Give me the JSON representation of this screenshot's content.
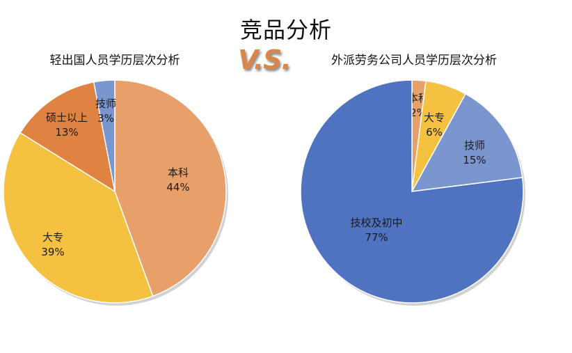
{
  "main_title": "竞品分析",
  "vs_text": "V.S.",
  "chart_data": [
    {
      "type": "pie",
      "title": "轻出国人员学历层次分析",
      "slices": [
        {
          "label": "本科",
          "value": 44,
          "value_text": "44%",
          "color": "#e8a06b"
        },
        {
          "label": "大专",
          "value": 39,
          "value_text": "39%",
          "color": "#f4c140"
        },
        {
          "label": "硕士以上",
          "value": 13,
          "value_text": "13%",
          "color": "#e08241"
        },
        {
          "label": "技师",
          "value": 3,
          "value_text": "3%",
          "color": "#7b95cf"
        }
      ]
    },
    {
      "type": "pie",
      "title": "外派劳务公司人员学历层次分析",
      "slices": [
        {
          "label": "本科",
          "value": 2,
          "value_text": "2%",
          "color": "#e8a06b"
        },
        {
          "label": "大专",
          "value": 6,
          "value_text": "6%",
          "color": "#f4c140"
        },
        {
          "label": "技师",
          "value": 15,
          "value_text": "15%",
          "color": "#7b95cf"
        },
        {
          "label": "技校及初中",
          "value": 77,
          "value_text": "77%",
          "color": "#4f72c1"
        }
      ]
    }
  ]
}
